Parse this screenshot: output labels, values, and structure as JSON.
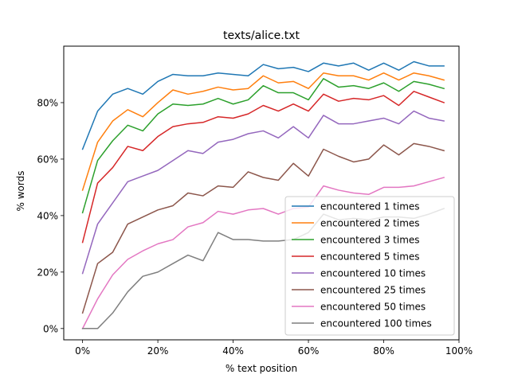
{
  "chart_data": {
    "type": "line",
    "title": "texts/alice.txt",
    "xlabel": "% text position",
    "ylabel": "% words",
    "xlim": [
      -5,
      100
    ],
    "ylim": [
      -4,
      100
    ],
    "xticks": [
      0,
      20,
      40,
      60,
      80,
      100
    ],
    "xtick_labels": [
      "0%",
      "20%",
      "40%",
      "60%",
      "80%",
      "100%"
    ],
    "yticks": [
      0,
      20,
      40,
      60,
      80
    ],
    "ytick_labels": [
      "0%",
      "20%",
      "40%",
      "60%",
      "80%"
    ],
    "grid": false,
    "legend_position": "lower-right",
    "x": [
      0,
      4,
      8,
      12,
      16,
      20,
      24,
      28,
      32,
      36,
      40,
      44,
      48,
      52,
      56,
      60,
      64,
      68,
      72,
      76,
      80,
      84,
      88,
      92,
      96
    ],
    "series": [
      {
        "name": "encountered 1 times",
        "color": "#1f77b4",
        "values": [
          63.5,
          77.0,
          83.0,
          85.0,
          83.0,
          87.5,
          90.0,
          89.5,
          89.5,
          90.5,
          90.0,
          89.5,
          93.5,
          92.0,
          92.5,
          91.0,
          94.0,
          93.0,
          94.0,
          91.5,
          94.0,
          91.5,
          94.5,
          93.0,
          93.0
        ]
      },
      {
        "name": "encountered 2 times",
        "color": "#ff7f0e",
        "values": [
          49.0,
          66.0,
          73.5,
          77.5,
          75.0,
          80.0,
          84.5,
          83.0,
          84.0,
          85.5,
          84.5,
          85.0,
          89.5,
          87.0,
          87.5,
          85.0,
          90.5,
          89.5,
          89.5,
          88.0,
          90.5,
          88.0,
          90.5,
          89.5,
          88.0
        ]
      },
      {
        "name": "encountered 3 times",
        "color": "#2ca02c",
        "values": [
          41.0,
          59.5,
          66.5,
          72.0,
          70.0,
          76.0,
          79.5,
          79.0,
          79.5,
          81.5,
          79.5,
          81.0,
          86.0,
          83.5,
          83.5,
          81.0,
          88.5,
          85.5,
          86.0,
          85.0,
          87.0,
          84.0,
          87.5,
          86.5,
          85.0
        ]
      },
      {
        "name": "encountered 5 times",
        "color": "#d62728",
        "values": [
          30.5,
          51.5,
          57.0,
          64.5,
          63.0,
          68.0,
          71.5,
          72.5,
          73.0,
          75.0,
          74.5,
          76.0,
          79.0,
          77.0,
          79.5,
          77.0,
          83.0,
          80.5,
          81.5,
          81.0,
          82.5,
          79.0,
          84.0,
          82.0,
          80.0
        ]
      },
      {
        "name": "encountered 10 times",
        "color": "#9467bd",
        "values": [
          19.5,
          37.0,
          44.5,
          52.0,
          54.0,
          56.0,
          59.5,
          63.0,
          62.0,
          66.0,
          67.0,
          69.0,
          70.0,
          67.5,
          71.5,
          67.5,
          75.5,
          72.5,
          72.5,
          73.5,
          74.5,
          72.5,
          77.0,
          74.5,
          73.5
        ]
      },
      {
        "name": "encountered 25 times",
        "color": "#8c564b",
        "values": [
          5.5,
          23.0,
          27.0,
          37.0,
          39.5,
          42.0,
          43.5,
          48.0,
          47.0,
          50.5,
          50.0,
          55.5,
          53.5,
          52.5,
          58.5,
          54.0,
          63.5,
          61.0,
          59.0,
          60.0,
          65.0,
          61.5,
          65.5,
          64.5,
          63.0
        ]
      },
      {
        "name": "encountered 50 times",
        "color": "#e377c2",
        "values": [
          0.0,
          10.5,
          19.0,
          24.5,
          27.5,
          30.0,
          31.5,
          36.0,
          37.5,
          41.5,
          40.5,
          42.0,
          42.5,
          40.5,
          42.5,
          43.0,
          50.5,
          49.0,
          48.0,
          47.5,
          50.0,
          50.0,
          50.5,
          52.0,
          53.5
        ]
      },
      {
        "name": "encountered 100 times",
        "color": "#7f7f7f",
        "values": [
          0.0,
          0.0,
          5.5,
          13.0,
          18.5,
          20.0,
          23.0,
          26.0,
          24.0,
          34.0,
          31.5,
          31.5,
          31.0,
          31.0,
          31.5,
          34.0,
          40.5,
          38.5,
          39.0,
          38.5,
          39.5,
          39.5,
          39.0,
          40.5,
          42.5
        ]
      }
    ]
  }
}
